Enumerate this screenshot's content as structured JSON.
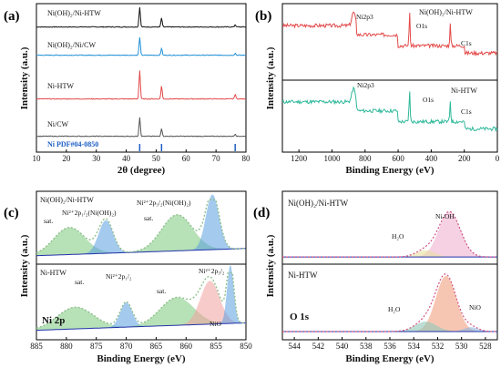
{
  "chart_data": [
    {
      "panel_label": "(a)",
      "type": "line",
      "xlabel": "2θ (degree)",
      "ylabel": "Intensity (a.u.)",
      "xlim": [
        10,
        80
      ],
      "xticks": [
        "10",
        "20",
        "30",
        "40",
        "50",
        "60",
        "70",
        "80"
      ],
      "reference_label": "Ni PDF#04-0850",
      "reference_peaks": [
        44.5,
        51.8,
        76.4
      ],
      "series": [
        {
          "name": "Ni(OH)₂/Ni-HTW",
          "color": "#111111",
          "peaks": [
            [
              44.5,
              1.0
            ],
            [
              51.8,
              0.45
            ],
            [
              76.4,
              0.12
            ]
          ]
        },
        {
          "name": "Ni(OH)₂/Ni/CW",
          "color": "#1f8fd6",
          "peaks": [
            [
              44.5,
              0.9
            ],
            [
              51.8,
              0.35
            ],
            [
              76.4,
              0.1
            ]
          ]
        },
        {
          "name": "Ni-HTW",
          "color": "#e34a4a",
          "peaks": [
            [
              44.5,
              1.2
            ],
            [
              51.8,
              0.55
            ],
            [
              76.4,
              0.2
            ]
          ]
        },
        {
          "name": "Ni/CW",
          "color": "#555555",
          "peaks": [
            [
              44.5,
              0.95
            ],
            [
              51.8,
              0.4
            ],
            [
              76.4,
              0.12
            ]
          ]
        }
      ]
    },
    {
      "panel_label": "(b)",
      "type": "line",
      "xlabel": "Binding Energy (eV)",
      "ylabel": "Intensity (a.u.)",
      "xlim": [
        1300,
        0
      ],
      "xticks": [
        "1200",
        "1000",
        "800",
        "600",
        "400",
        "200",
        "0"
      ],
      "series": [
        {
          "name": "Ni(OH)₂/Ni-HTW",
          "color": "#e34a4a",
          "annotations": [
            {
              "text": "Ni2p3",
              "x": 855
            },
            {
              "text": "O1s",
              "x": 531
            },
            {
              "text": "C1s",
              "x": 285
            }
          ]
        },
        {
          "name": "Ni-HTW",
          "color": "#2fb89a",
          "annotations": [
            {
              "text": "Ni2p3",
              "x": 855
            },
            {
              "text": "O1s",
              "x": 531
            },
            {
              "text": "C1s",
              "x": 285
            }
          ]
        }
      ]
    },
    {
      "panel_label": "(c)",
      "type": "line",
      "xlabel": "Binding Energy (eV)",
      "ylabel": "Intensity (a.u.)",
      "xlim": [
        885,
        850
      ],
      "xticks": [
        "885",
        "880",
        "875",
        "870",
        "865",
        "860",
        "855",
        "850"
      ],
      "panel_text": "Ni 2p",
      "subplots": [
        {
          "name": "Ni(OH)₂/Ni-HTW",
          "annotations": [
            "sat.",
            "Ni²⁺2p₁/₂(Ni(OH)₂)",
            "sat.",
            "Ni²⁺2p₃/₂(Ni(OH)₂)"
          ]
        },
        {
          "name": "Ni-HTW",
          "annotations": [
            "sat.",
            "Ni²⁺2p₁/₂",
            "sat.",
            "Ni²⁺2p₃/₂",
            "NiO"
          ]
        }
      ]
    },
    {
      "panel_label": "(d)",
      "type": "line",
      "xlabel": "Binding Energy (eV)",
      "ylabel": "Intensity (a.u.)",
      "xlim": [
        545,
        527
      ],
      "xticks": [
        "544",
        "542",
        "540",
        "538",
        "536",
        "534",
        "532",
        "530",
        "528"
      ],
      "panel_text": "O 1s",
      "subplots": [
        {
          "name": "Ni(OH)₂/Ni-HTW",
          "annotations": [
            "Ni-OH",
            "H₂O"
          ]
        },
        {
          "name": "Ni-HTW",
          "annotations": [
            "H₂O",
            "NiO"
          ]
        }
      ]
    }
  ]
}
